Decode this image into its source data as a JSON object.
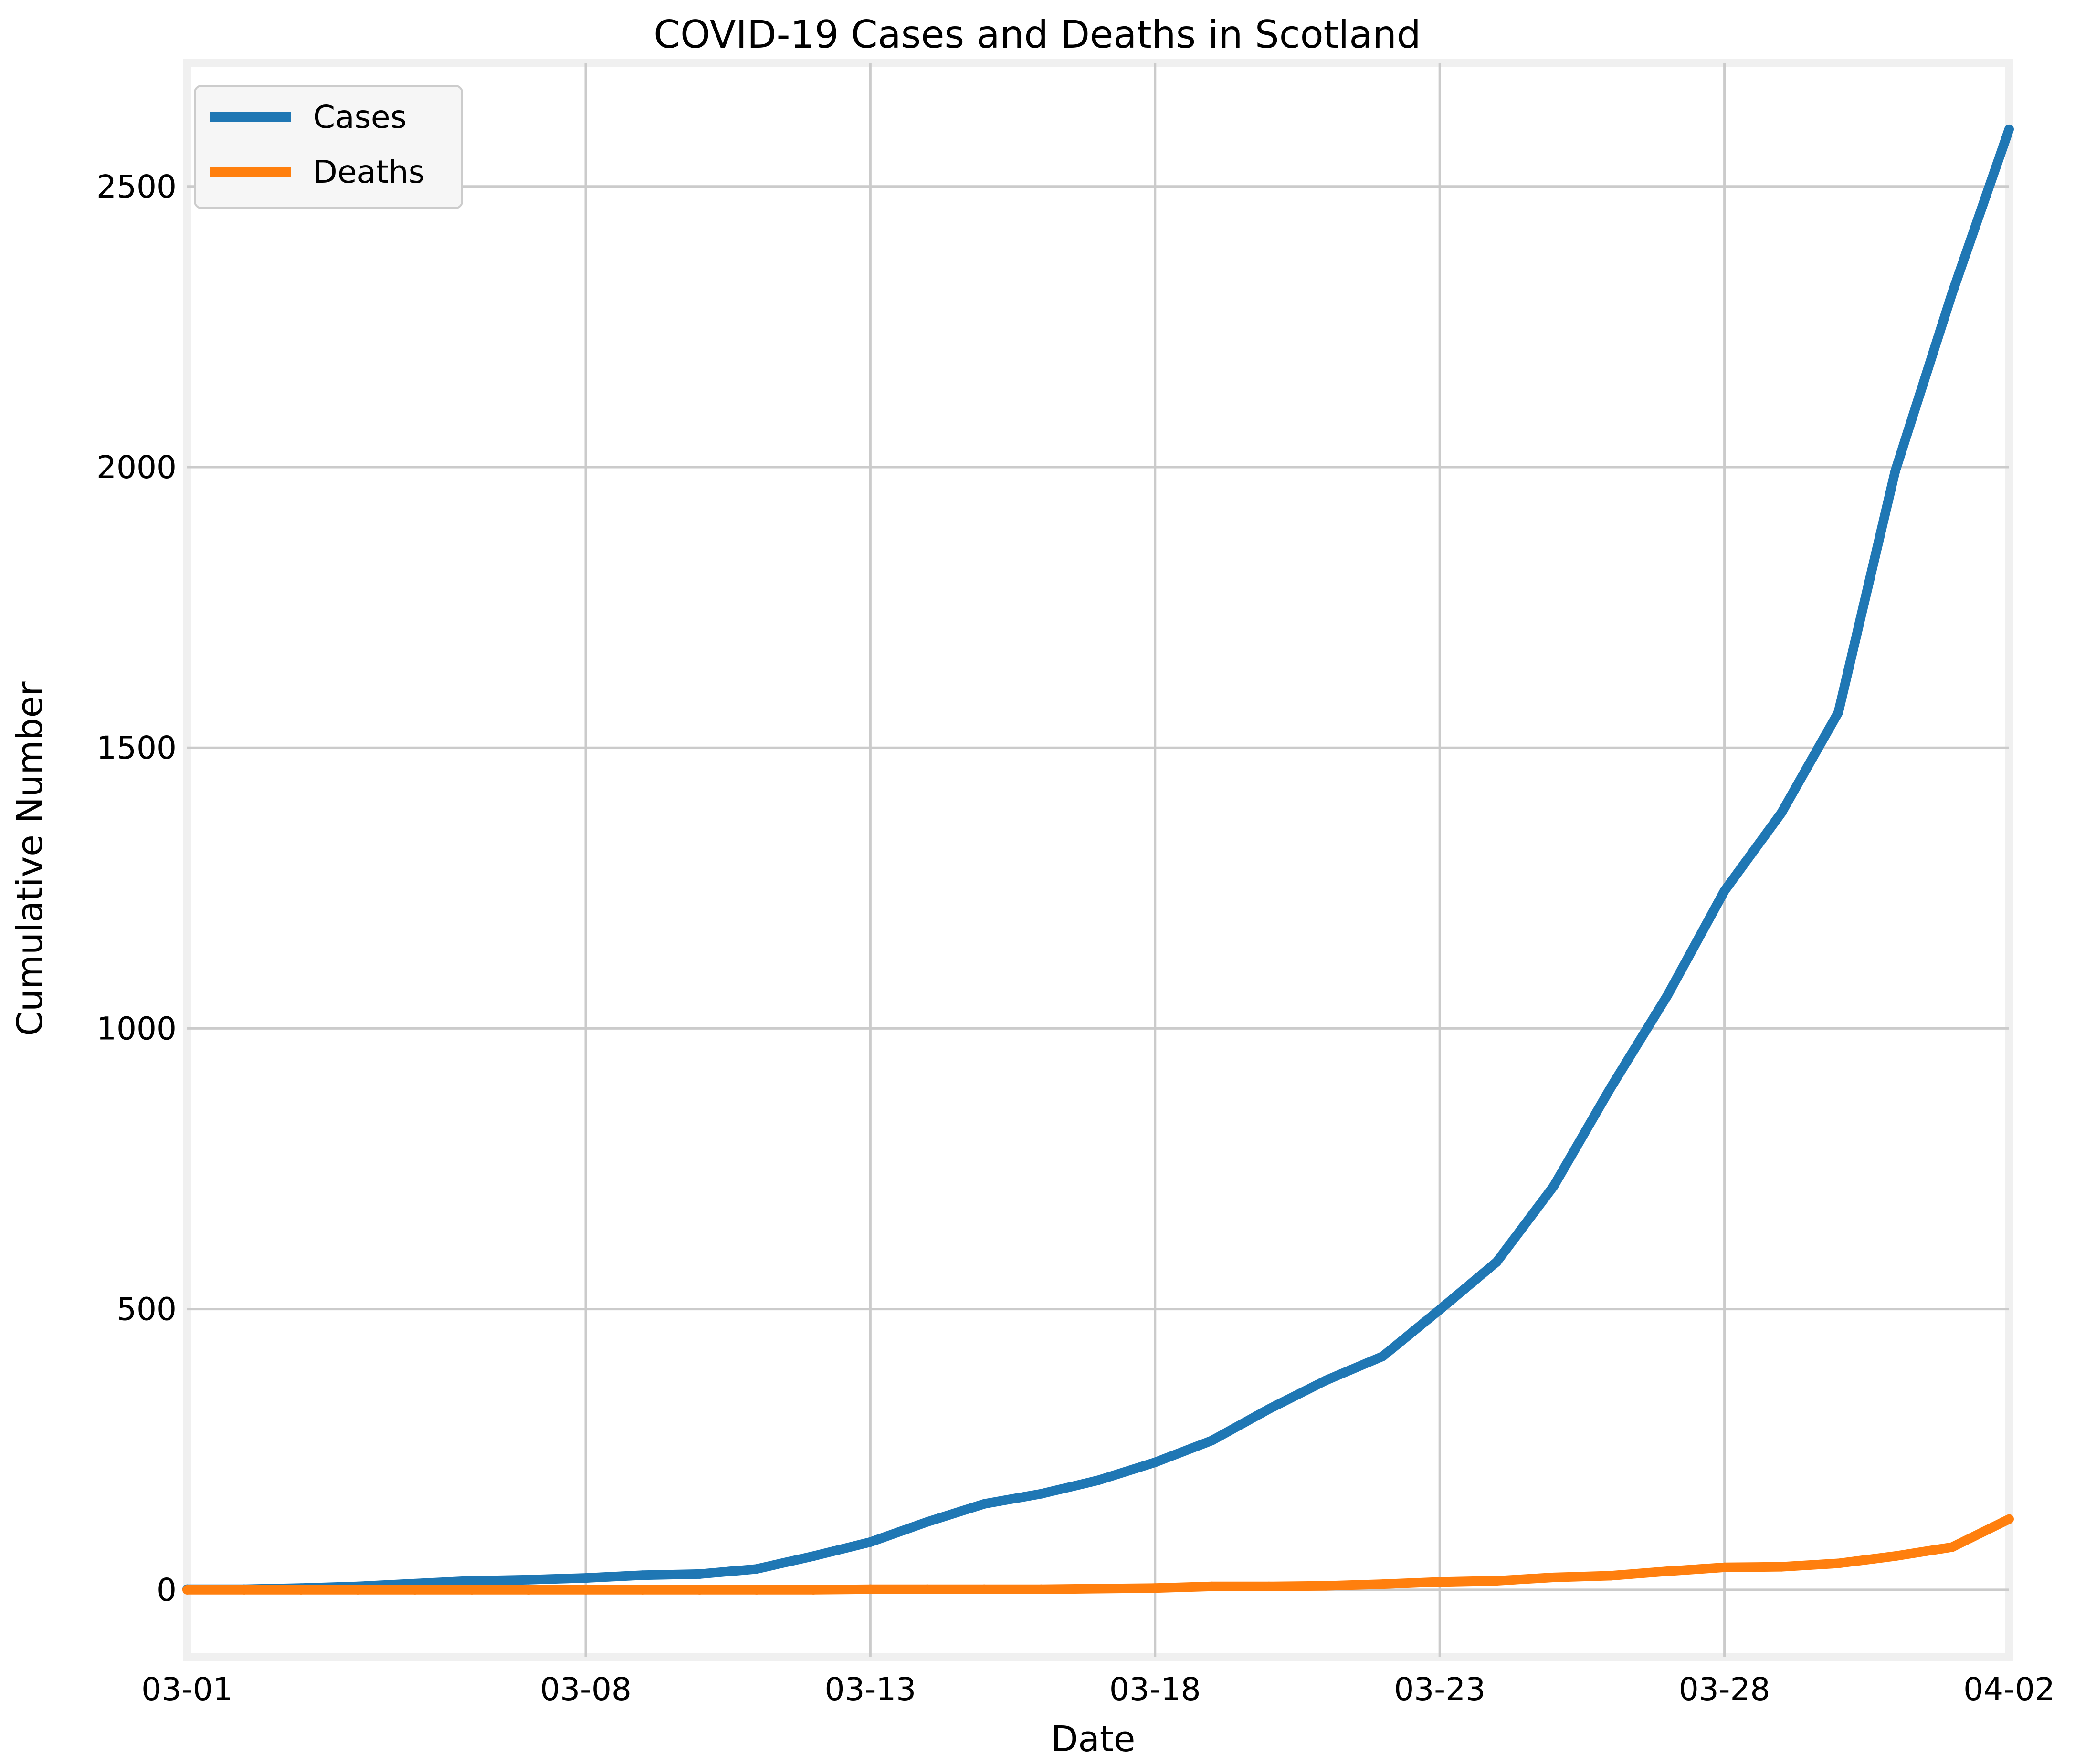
{
  "chart_data": {
    "type": "line",
    "title": "COVID-19 Cases and Deaths in Scotland",
    "xlabel": "Date",
    "ylabel": "Cumulative Number",
    "x_tick_labels": [
      "03-01",
      "03-08",
      "03-13",
      "03-18",
      "03-23",
      "03-28",
      "04-02"
    ],
    "y_tick_labels": [
      "0",
      "500",
      "1000",
      "1500",
      "2000",
      "2500"
    ],
    "ylim": [
      -120,
      2720
    ],
    "grid": true,
    "legend": "top-left",
    "x": [
      "03-01",
      "03-02",
      "03-03",
      "03-04",
      "03-05",
      "03-06",
      "03-07",
      "03-08",
      "03-09",
      "03-10",
      "03-11",
      "03-12",
      "03-13",
      "03-14",
      "03-15",
      "03-16",
      "03-17",
      "03-18",
      "03-19",
      "03-20",
      "03-21",
      "03-22",
      "03-23",
      "03-24",
      "03-25",
      "03-26",
      "03-27",
      "03-28",
      "03-29",
      "03-30",
      "03-31",
      "04-01",
      "04-02"
    ],
    "series": [
      {
        "name": "Cases",
        "color": "#1f77b4",
        "values": [
          1,
          1,
          3,
          6,
          11,
          16,
          18,
          21,
          26,
          28,
          37,
          60,
          85,
          121,
          153,
          171,
          195,
          227,
          266,
          322,
          373,
          416,
          499,
          584,
          719,
          894,
          1059,
          1245,
          1384,
          1563,
          1993,
          2310,
          2602
        ]
      },
      {
        "name": "Deaths",
        "color": "#ff7f0e",
        "values": [
          0,
          0,
          0,
          0,
          0,
          0,
          0,
          0,
          0,
          0,
          0,
          0,
          1,
          1,
          1,
          1,
          2,
          3,
          6,
          6,
          7,
          10,
          14,
          16,
          22,
          25,
          33,
          40,
          41,
          47,
          60,
          76,
          126
        ]
      }
    ]
  }
}
